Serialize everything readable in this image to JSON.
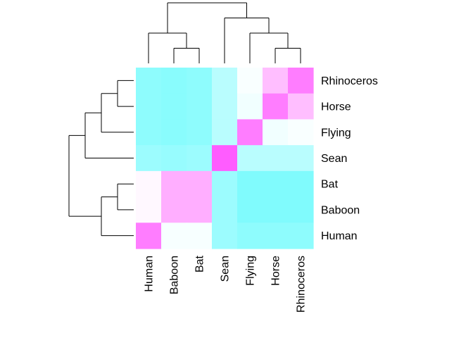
{
  "chart_data": {
    "type": "heatmap",
    "title": "",
    "xlabel": "",
    "ylabel": "",
    "columns": [
      "Human",
      "Baboon",
      "Bat",
      "Sean",
      "Flying",
      "Horse",
      "Rhinoceros"
    ],
    "rows_top_to_bottom": [
      "Rhinoceros",
      "Horse",
      "Flying",
      "Sean",
      "Bat",
      "Baboon",
      "Human"
    ],
    "values": [
      [
        0.1,
        0.08,
        0.1,
        0.25,
        0.48,
        0.7,
        0.9
      ],
      [
        0.1,
        0.08,
        0.1,
        0.25,
        0.45,
        0.9,
        0.7
      ],
      [
        0.1,
        0.08,
        0.1,
        0.25,
        0.9,
        0.45,
        0.48
      ],
      [
        0.15,
        0.13,
        0.15,
        1.0,
        0.25,
        0.25,
        0.25
      ],
      [
        0.52,
        0.75,
        0.75,
        0.15,
        0.05,
        0.05,
        0.05
      ],
      [
        0.52,
        0.75,
        0.75,
        0.15,
        0.05,
        0.05,
        0.05
      ],
      [
        0.9,
        0.47,
        0.47,
        0.15,
        0.1,
        0.1,
        0.1
      ]
    ],
    "color_low": "#72fbfd",
    "color_mid": "#ffffff",
    "color_high": "#ff5cff",
    "column_dendrogram": "((Human,(Baboon,Bat)),(Sean,(Flying,(Horse,Rhinoceros))))",
    "row_dendrogram": "((((Rhinoceros,Horse),Flying),Sean),((Bat,Baboon),Human))",
    "grid": false,
    "legend": "none"
  }
}
